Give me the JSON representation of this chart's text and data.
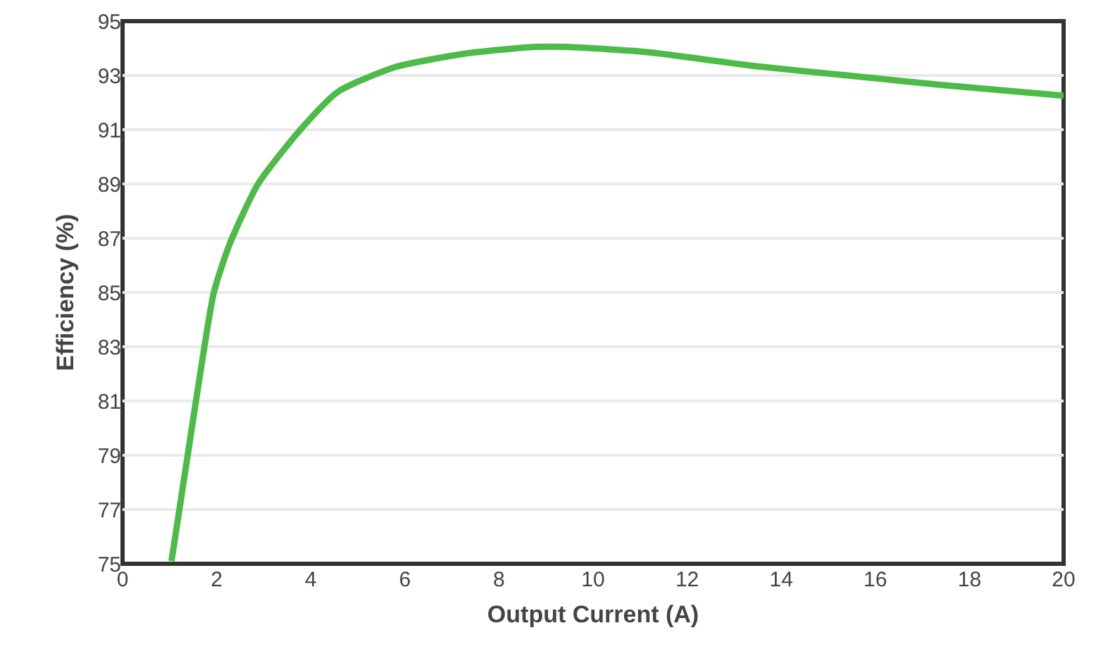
{
  "chart_data": {
    "type": "line",
    "xlabel": "Output Current (A)",
    "ylabel": "Efficiency (%)",
    "x": [
      1.04,
      1.34,
      1.64,
      1.94,
      2.28,
      2.88,
      3.78,
      4.58,
      5.78,
      7.27,
      8.77,
      9.4,
      10,
      11.2,
      13.4,
      15.4,
      17.4,
      20
    ],
    "series": [
      {
        "color": "#4cbb47",
        "values": [
          75.1,
          78.5,
          81.9,
          85,
          86.8,
          89,
          91,
          92.4,
          93.3,
          93.8,
          94.05,
          94.05,
          94,
          93.85,
          93.35,
          93,
          92.65,
          92.25
        ]
      }
    ],
    "xlim": [
      0,
      20
    ],
    "xticks": [
      0,
      2,
      4,
      6,
      8,
      10,
      12,
      14,
      16,
      18,
      20
    ],
    "ylim": [
      75,
      95
    ],
    "yticks": [
      75,
      77,
      79,
      81,
      83,
      85,
      87,
      89,
      91,
      93,
      95
    ],
    "grid": "y",
    "marker": "none",
    "line_style": "solid"
  }
}
